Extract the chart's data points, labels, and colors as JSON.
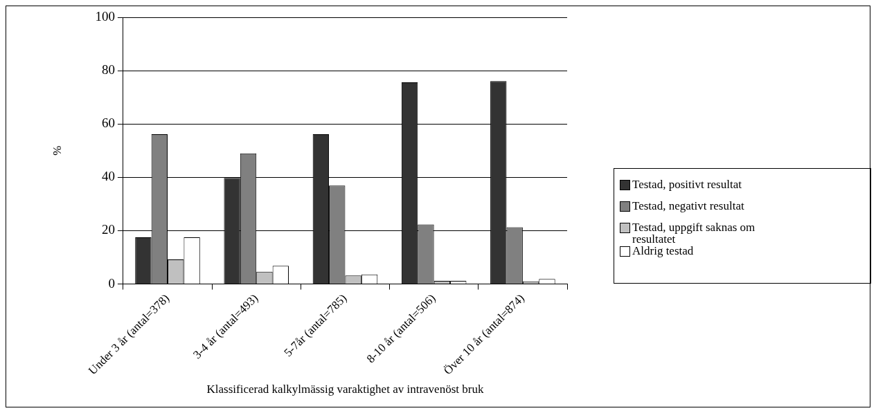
{
  "chart_data": {
    "type": "bar",
    "xlabel": "Klassificerad kalkylmässig varaktighet av intravenöst bruk",
    "ylabel": "%",
    "categories": [
      "Under 3 år (antal=378)",
      "3-4 år (antal=493)",
      "5-7år (antal=785)",
      "8-10 år (antal=506)",
      "Över 10 år (antal=874)"
    ],
    "series": [
      {
        "name": "Testad, positivt resultat",
        "color": "#333333",
        "values": [
          17.5,
          39.8,
          56.2,
          75.6,
          76.1
        ]
      },
      {
        "name": "Testad, negativt resultat",
        "color": "#808080",
        "values": [
          56.2,
          49,
          36.9,
          22.3,
          21.3
        ]
      },
      {
        "name": "Testad, uppgift saknas om resultatet",
        "color": "#c0c0c0",
        "values": [
          9.2,
          4.6,
          3.2,
          1.2,
          1.0
        ]
      },
      {
        "name": "Aldrig testad",
        "color": "#ffffff",
        "values": [
          17.5,
          6.8,
          3.6,
          1.2,
          1.9
        ]
      }
    ],
    "ylim": [
      0,
      100
    ],
    "yticks": [
      0,
      20,
      40,
      60,
      80,
      100
    ],
    "grid": "y",
    "legend": "right"
  }
}
